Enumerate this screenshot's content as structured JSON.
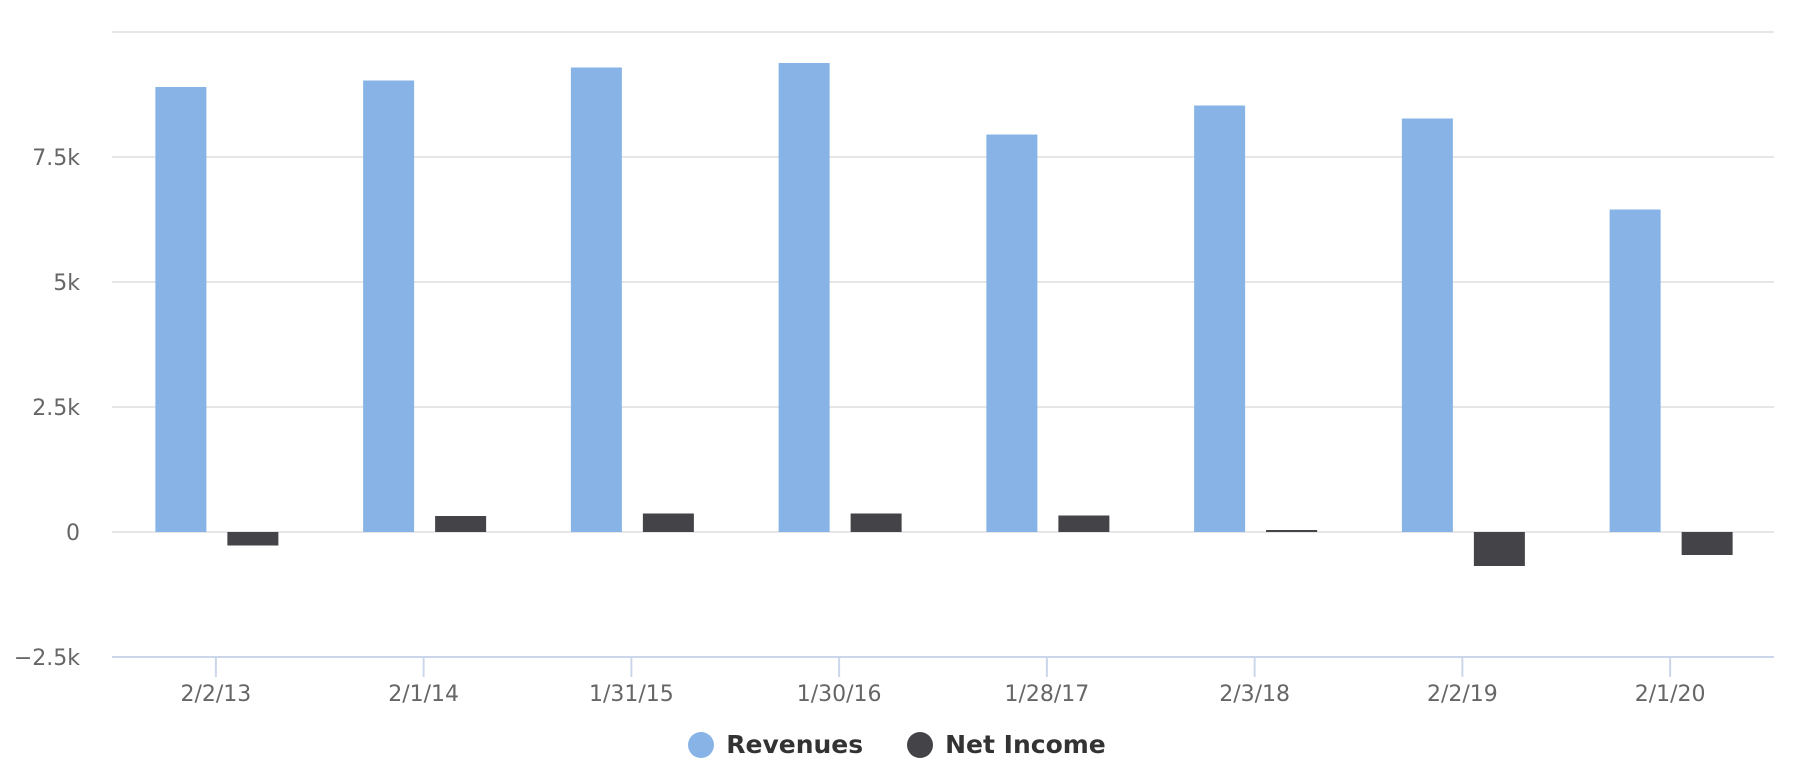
{
  "chart_data": {
    "type": "bar",
    "title": "",
    "xlabel": "",
    "ylabel": "",
    "categories": [
      "2/2/13",
      "2/1/14",
      "1/31/15",
      "1/30/16",
      "1/28/17",
      "2/3/18",
      "2/2/19",
      "2/1/20"
    ],
    "series": [
      {
        "name": "Revenues",
        "color": "#88b3e6",
        "values": [
          8900,
          9030,
          9290,
          9380,
          7950,
          8530,
          8270,
          6450
        ]
      },
      {
        "name": "Net Income",
        "color": "#434348",
        "values": [
          -270,
          320,
          370,
          370,
          330,
          30,
          -680,
          -460
        ]
      }
    ],
    "ylim": [
      -2500,
      10000
    ],
    "yticks": [
      -2500,
      0,
      2500,
      5000,
      7500
    ],
    "ytick_labels": [
      "−2.5k",
      "0",
      "2.5k",
      "5k",
      "7.5k"
    ],
    "grid": true,
    "legend_position": "bottom-center"
  },
  "legend": {
    "items": [
      {
        "label": "Revenues",
        "color": "#88b3e6"
      },
      {
        "label": "Net Income",
        "color": "#434348"
      }
    ]
  }
}
